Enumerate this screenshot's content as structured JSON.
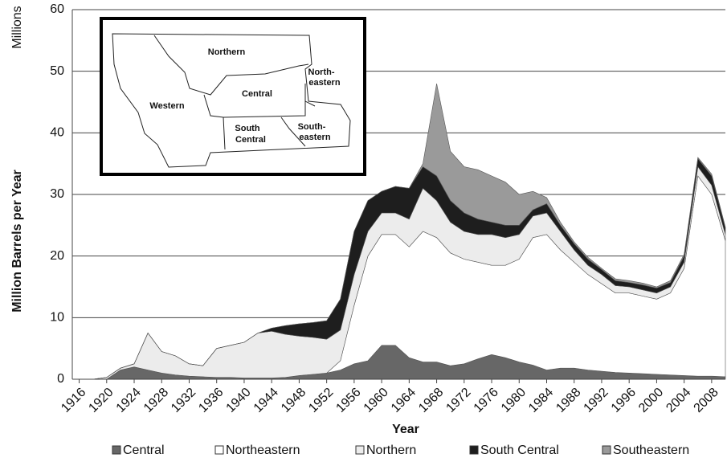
{
  "chart_data": {
    "type": "stacked_area",
    "y_unit_label": "Millions",
    "ylabel": "Million Barrels per Year",
    "xlabel": "Year",
    "x": [
      1916,
      1918,
      1920,
      1922,
      1924,
      1926,
      1928,
      1930,
      1932,
      1934,
      1936,
      1938,
      1940,
      1942,
      1944,
      1946,
      1948,
      1950,
      1952,
      1954,
      1956,
      1958,
      1960,
      1962,
      1964,
      1966,
      1968,
      1970,
      1972,
      1974,
      1976,
      1978,
      1980,
      1982,
      1984,
      1986,
      1988,
      1990,
      1992,
      1994,
      1996,
      1998,
      2000,
      2002,
      2004,
      2006,
      2008,
      2010
    ],
    "xlim": [
      1915,
      2010
    ],
    "xticks": [
      1916,
      1920,
      1924,
      1928,
      1932,
      1936,
      1940,
      1944,
      1948,
      1952,
      1956,
      1960,
      1964,
      1968,
      1972,
      1976,
      1980,
      1984,
      1988,
      1992,
      1996,
      2000,
      2004,
      2008
    ],
    "ylim": [
      0,
      60
    ],
    "yticks": [
      0,
      10,
      20,
      30,
      40,
      50,
      60
    ],
    "grid": true,
    "series": [
      {
        "name": "Central",
        "color": "#676767",
        "values": [
          0,
          0,
          0,
          1.5,
          2,
          1.5,
          1,
          0.7,
          0.5,
          0.4,
          0.3,
          0.3,
          0.2,
          0.2,
          0.2,
          0.3,
          0.6,
          0.8,
          1,
          1.5,
          2.5,
          3,
          5.5,
          5.5,
          3.5,
          2.8,
          2.8,
          2.2,
          2.5,
          3.3,
          4,
          3.5,
          2.8,
          2.3,
          1.5,
          1.8,
          1.8,
          1.5,
          1.3,
          1.1,
          1,
          0.9,
          0.8,
          0.7,
          0.6,
          0.5,
          0.5,
          0.4
        ]
      },
      {
        "name": "Northeastern",
        "color": "#ffffff",
        "values": [
          0,
          0,
          0,
          0,
          0,
          0,
          0,
          0,
          0,
          0,
          0,
          0,
          0,
          0,
          0,
          0,
          0,
          0,
          0,
          1.5,
          9.5,
          17,
          18,
          18,
          18,
          21.2,
          20.2,
          18.3,
          17,
          15.7,
          14.5,
          15,
          16.7,
          20.7,
          22,
          19.2,
          17.2,
          15.5,
          14.2,
          12.9,
          13,
          12.6,
          12.2,
          13.3,
          17.4,
          32.5,
          29.5,
          22.1
        ]
      },
      {
        "name": "Northern",
        "color": "#ececec",
        "values": [
          0,
          0,
          0.3,
          0.3,
          0.5,
          6,
          3.5,
          3.1,
          2,
          1.8,
          4.7,
          5.2,
          5.8,
          7.3,
          7.6,
          7,
          6.4,
          6,
          5.5,
          5,
          5,
          4,
          3.5,
          3.5,
          4.5,
          7,
          6,
          5,
          4.5,
          4.5,
          5,
          4.5,
          4,
          3.5,
          3.5,
          3,
          2,
          1.5,
          1.5,
          1.2,
          1,
          1,
          1,
          1,
          1,
          1.5,
          1.5,
          1
        ]
      },
      {
        "name": "South Central",
        "color": "#1e1e1e",
        "values": [
          0,
          0,
          0,
          0,
          0,
          0,
          0,
          0,
          0,
          0,
          0,
          0,
          0,
          0,
          0.5,
          1.4,
          2,
          2.4,
          3,
          5,
          7,
          5,
          3.5,
          4.3,
          5,
          3.5,
          4,
          3.5,
          3,
          2.5,
          2,
          2,
          1.5,
          1,
          1.5,
          1,
          1,
          1,
          0.8,
          0.8,
          0.7,
          0.8,
          0.8,
          0.7,
          1,
          1.3,
          1.5,
          1
        ]
      },
      {
        "name": "Southeastern",
        "color": "#9a9a9a",
        "values": [
          0,
          0,
          0,
          0,
          0,
          0,
          0,
          0,
          0,
          0,
          0,
          0,
          0,
          0,
          0,
          0,
          0,
          0,
          0,
          0,
          0,
          0,
          0,
          0,
          0,
          0.5,
          15,
          8,
          7.5,
          8,
          7.5,
          7,
          5,
          3,
          1,
          0.5,
          0.3,
          0.3,
          0.2,
          0.3,
          0.3,
          0.3,
          0.2,
          0.3,
          0.3,
          0.2,
          0.3,
          0.2
        ]
      }
    ],
    "inset_labels": [
      "Northern",
      "North-",
      "eastern",
      "Central",
      "Western",
      "South",
      "Central",
      "South-",
      "eastern"
    ]
  }
}
